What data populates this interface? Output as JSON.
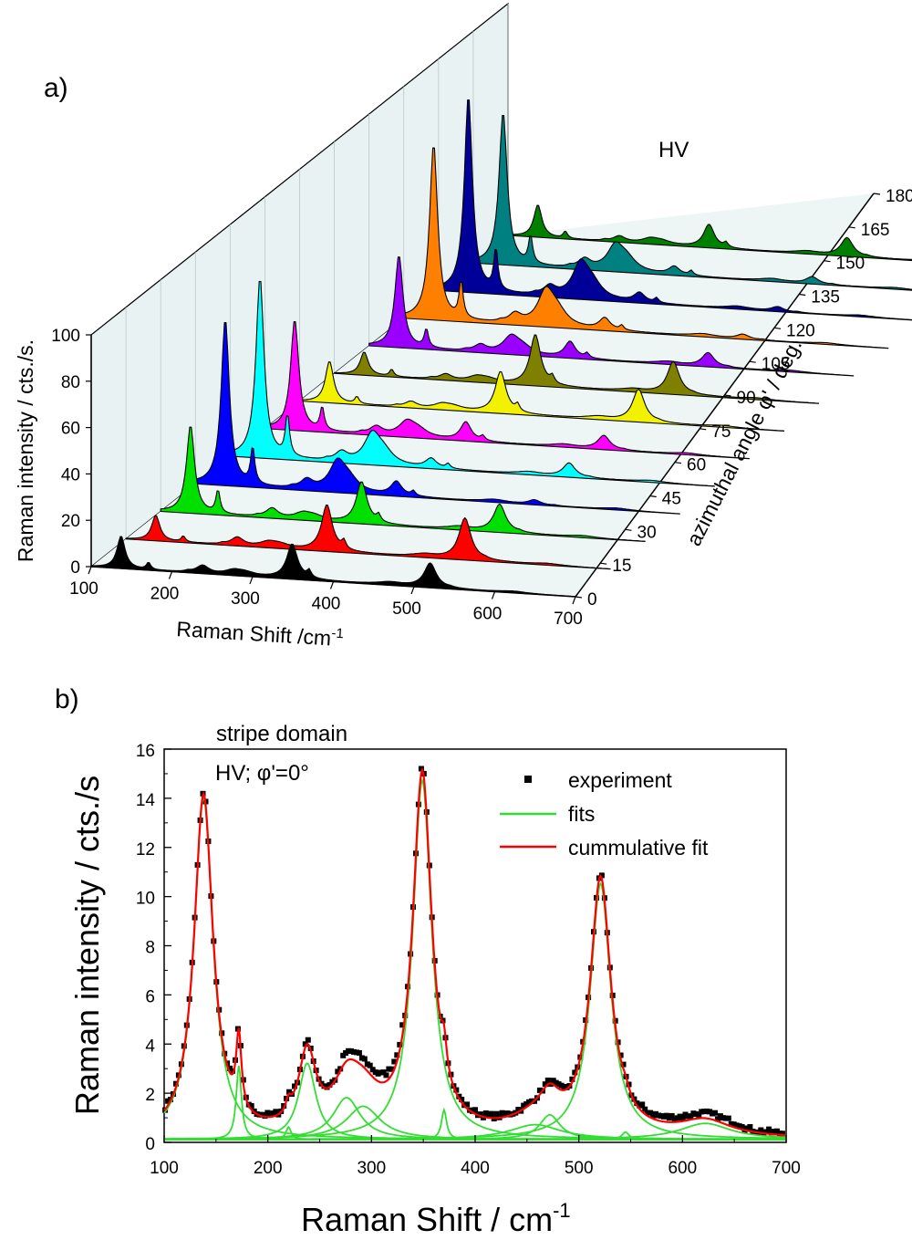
{
  "chart_data": [
    {
      "panel_label": "a)",
      "type": "area",
      "subtype": "3d-waterfall",
      "annotation": "HV",
      "xlabel": "Raman Shift /cm",
      "xlabel_sup": "-1",
      "ylabel": "Raman intensity / cts./s.",
      "zlabel": "azimuthal angle φ' / deg.",
      "xlim": [
        100,
        700
      ],
      "ylim": [
        0,
        100
      ],
      "zlim": [
        0,
        180
      ],
      "xticks": [
        "100",
        "200",
        "300",
        "400",
        "500",
        "600",
        "700"
      ],
      "yticks": [
        "0",
        "20",
        "40",
        "60",
        "80",
        "100"
      ],
      "zticks": [
        "0",
        "15",
        "30",
        "45",
        "60",
        "75",
        "90",
        "105",
        "120",
        "135",
        "150",
        "165",
        "180"
      ],
      "peaks_cm1": [
        137,
        171,
        220,
        238,
        276,
        290,
        349,
        370,
        470,
        520,
        545,
        622
      ],
      "series": [
        {
          "angle": 0,
          "color": "#000000",
          "amps": [
            14,
            3,
            0.5,
            3.3,
            1.8,
            1.5,
            15,
            3,
            1.2,
            10.5,
            0.3,
            0.7
          ]
        },
        {
          "angle": 15,
          "color": "#ff0000",
          "amps": [
            11,
            2.5,
            0.5,
            3.5,
            2,
            1.6,
            20,
            3.5,
            1.3,
            18,
            0.4,
            0.7
          ]
        },
        {
          "angle": 30,
          "color": "#00e000",
          "amps": [
            38,
            10,
            0.5,
            4,
            2.5,
            1.8,
            18,
            3,
            1.4,
            12,
            0.4,
            0.8
          ]
        },
        {
          "angle": 45,
          "color": "#0000ff",
          "amps": [
            72,
            16,
            0.6,
            4,
            12,
            5,
            6,
            2,
            1.2,
            2,
            0.3,
            0.8
          ]
        },
        {
          "angle": 60,
          "color": "#00ffff",
          "amps": [
            78,
            18,
            0.6,
            4,
            12,
            5,
            4,
            2,
            1.2,
            6,
            0.3,
            0.8
          ]
        },
        {
          "angle": 75,
          "color": "#ff00ff",
          "amps": [
            48,
            10,
            0.6,
            3.5,
            6,
            3,
            8,
            2,
            1.2,
            6,
            0.3,
            0.8
          ]
        },
        {
          "angle": 90,
          "color": "#f2f200",
          "amps": [
            18,
            3,
            0.5,
            2.5,
            2,
            1.5,
            18,
            3,
            1.2,
            14,
            0.3,
            0.7
          ]
        },
        {
          "angle": 105,
          "color": "#808000",
          "amps": [
            10,
            3,
            0.5,
            2.5,
            2,
            1.5,
            22,
            3,
            1.2,
            14,
            0.3,
            0.7
          ]
        },
        {
          "angle": 120,
          "color": "#9900ff",
          "amps": [
            40,
            8,
            0.5,
            3,
            7,
            3,
            7,
            2,
            1.2,
            6,
            0.3,
            0.7
          ]
        },
        {
          "angle": 135,
          "color": "#ff8000",
          "amps": [
            76,
            16,
            0.6,
            4,
            14,
            6,
            5,
            2,
            1.2,
            2,
            0.3,
            0.7
          ]
        },
        {
          "angle": 150,
          "color": "#000099",
          "amps": [
            85,
            18,
            0.6,
            4,
            14,
            6,
            4,
            2,
            1.2,
            2,
            0.3,
            0.7
          ]
        },
        {
          "angle": 165,
          "color": "#008080",
          "amps": [
            66,
            12,
            0.6,
            4,
            10,
            5,
            3.5,
            2,
            1.2,
            3,
            0.3,
            0.7
          ]
        },
        {
          "angle": 180,
          "color": "#008000",
          "amps": [
            14,
            3,
            0.5,
            2.5,
            2,
            1.5,
            10,
            2,
            1.2,
            8,
            0.3,
            0.7
          ]
        }
      ]
    },
    {
      "panel_label": "b)",
      "type": "line",
      "title": "stripe domain",
      "subtitle": "HV; φ'=0°",
      "xlabel": "Raman Shift / cm",
      "xlabel_sup": "-1",
      "ylabel": "Raman intensity / cts./s",
      "xlim": [
        100,
        700
      ],
      "ylim": [
        0,
        16
      ],
      "xticks": [
        "100",
        "200",
        "300",
        "400",
        "500",
        "600",
        "700"
      ],
      "yticks": [
        "0",
        "2",
        "4",
        "6",
        "8",
        "10",
        "12",
        "14",
        "16"
      ],
      "legend_position": "top-right",
      "legend": [
        {
          "label": "experiment",
          "color": "#000000",
          "style": "square-marker"
        },
        {
          "label": "fits",
          "color": "#33dd33",
          "style": "line"
        },
        {
          "label": "cummulative fit",
          "color": "#ff0000",
          "style": "line"
        }
      ],
      "baseline": 0.12,
      "fits": [
        {
          "center": 138,
          "width": 11,
          "amp": 13.9
        },
        {
          "center": 172,
          "width": 3,
          "amp": 3.0
        },
        {
          "center": 220,
          "width": 3,
          "amp": 0.5
        },
        {
          "center": 238,
          "width": 10,
          "amp": 3.1
        },
        {
          "center": 276,
          "width": 16,
          "amp": 1.7
        },
        {
          "center": 292,
          "width": 20,
          "amp": 1.35
        },
        {
          "center": 349,
          "width": 11,
          "amp": 14.6
        },
        {
          "center": 370,
          "width": 3,
          "amp": 1.2
        },
        {
          "center": 458,
          "width": 30,
          "amp": 0.6
        },
        {
          "center": 472,
          "width": 12,
          "amp": 1.0
        },
        {
          "center": 521,
          "width": 12,
          "amp": 10.4
        },
        {
          "center": 545,
          "width": 4,
          "amp": 0.3
        },
        {
          "center": 622,
          "width": 30,
          "amp": 0.65
        }
      ]
    }
  ]
}
